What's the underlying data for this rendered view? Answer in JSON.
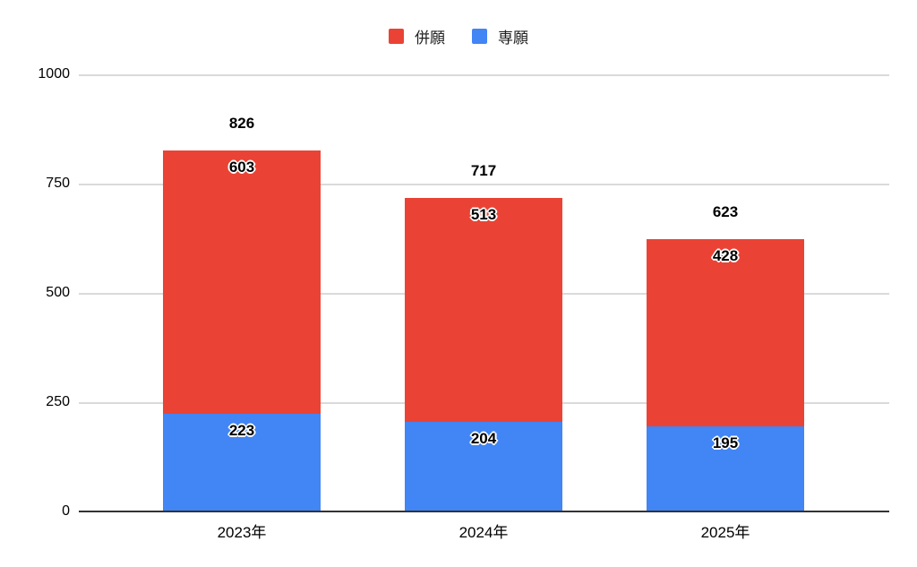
{
  "axis": {
    "y_ticks": [
      "1000",
      "750",
      "500",
      "250",
      "0"
    ]
  },
  "chart_data": {
    "type": "bar",
    "stacked": true,
    "title": "",
    "categories": [
      "2023年",
      "2024年",
      "2025年"
    ],
    "series": [
      {
        "name": "併願",
        "color": "#EA4335",
        "values": [
          603,
          513,
          428
        ]
      },
      {
        "name": "専願",
        "color": "#4285F4",
        "values": [
          223,
          204,
          195
        ]
      }
    ],
    "totals": [
      826,
      717,
      623
    ],
    "xlabel": "",
    "ylabel": "",
    "ylim": [
      0,
      1000
    ],
    "yticks": [
      1000,
      750,
      500,
      250,
      0
    ],
    "grid": true,
    "gridline_color": "#dadada",
    "axis_line_color": "#333333",
    "background_color": "#ffffff",
    "legend_position": "top"
  }
}
